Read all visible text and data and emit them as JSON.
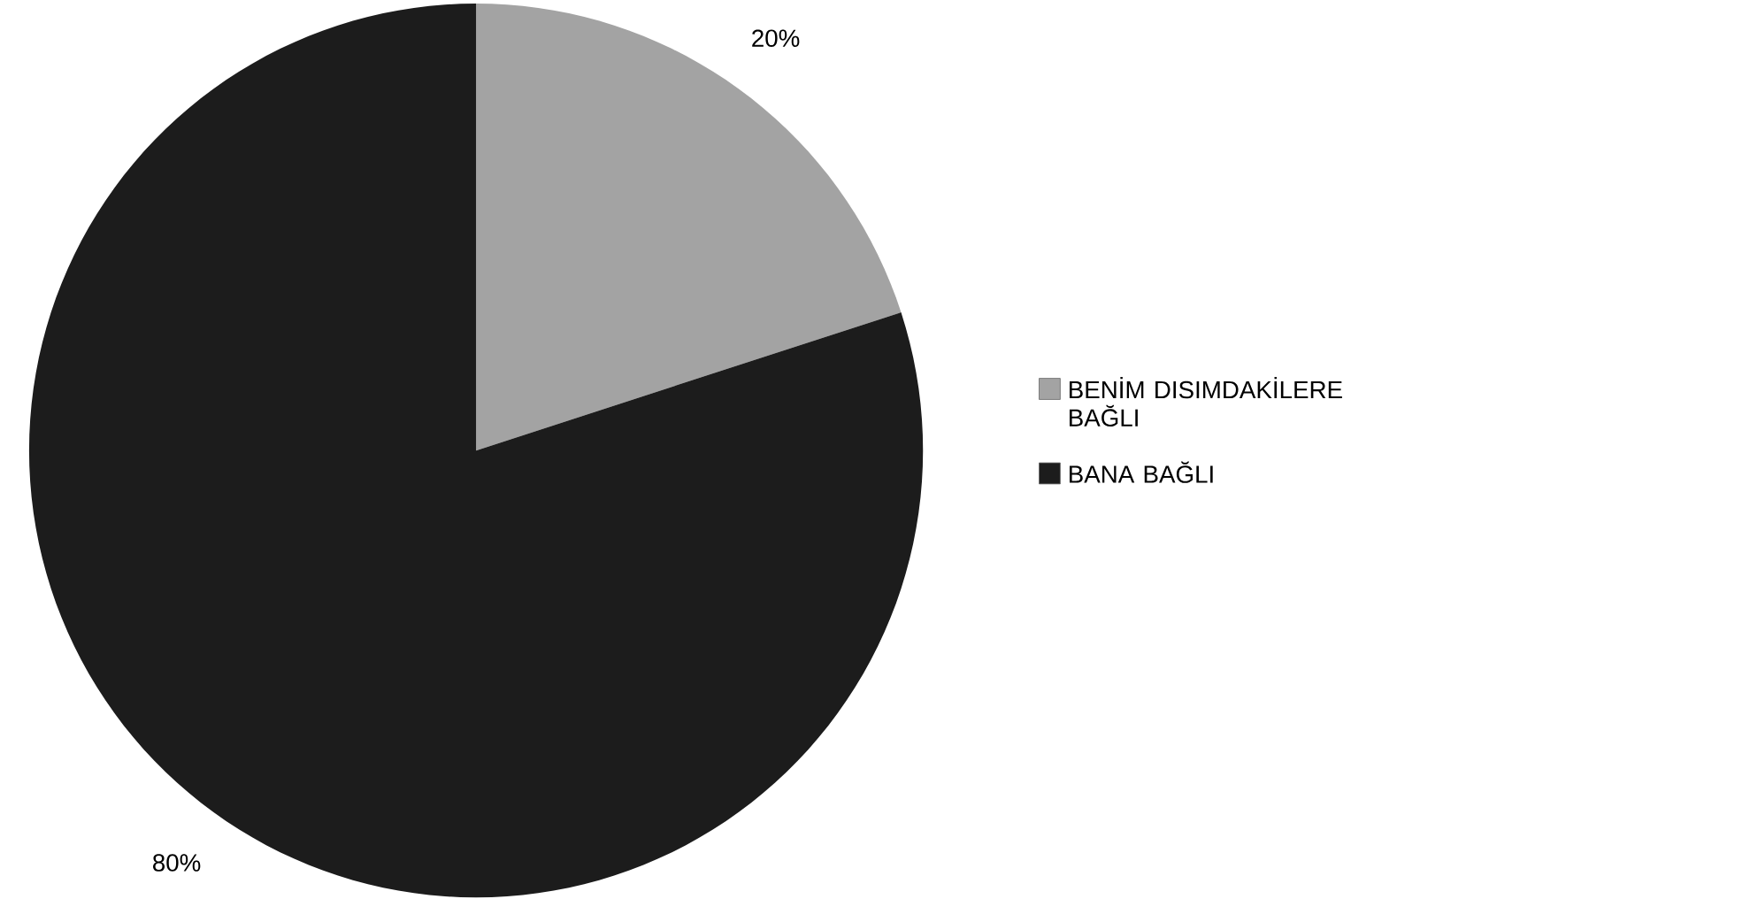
{
  "chart_data": {
    "type": "pie",
    "categories": [
      "BENİM DISIMDAKİLERE BAĞLI",
      "BANA BAĞLI"
    ],
    "values": [
      20,
      80
    ],
    "colors": [
      "#a3a3a3",
      "#1c1c1c"
    ],
    "value_labels": [
      "20%",
      "80%"
    ],
    "legend": "right"
  }
}
